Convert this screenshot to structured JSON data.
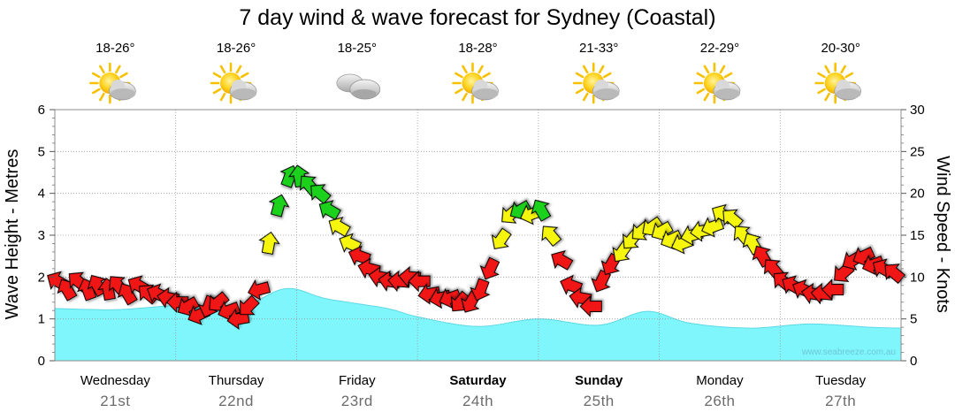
{
  "title": "7 day wind & wave forecast for Sydney (Coastal)",
  "credit": "www.seabreeze.com.au",
  "days": [
    {
      "name": "Wednesday",
      "date": "21st",
      "temp": "18-26°",
      "icon": "sun-cloud-icon",
      "bold": false
    },
    {
      "name": "Thursday",
      "date": "22nd",
      "temp": "18-26°",
      "icon": "sun-cloud-icon",
      "bold": false
    },
    {
      "name": "Friday",
      "date": "23rd",
      "temp": "18-25°",
      "icon": "cloud-icon",
      "bold": false
    },
    {
      "name": "Saturday",
      "date": "24th",
      "temp": "18-28°",
      "icon": "sun-cloud-icon",
      "bold": true
    },
    {
      "name": "Sunday",
      "date": "25th",
      "temp": "21-33°",
      "icon": "sun-cloud-icon",
      "bold": true
    },
    {
      "name": "Monday",
      "date": "26th",
      "temp": "22-29°",
      "icon": "sun-cloud-icon",
      "bold": false
    },
    {
      "name": "Tuesday",
      "date": "27th",
      "temp": "20-30°",
      "icon": "sun-cloud-icon",
      "bold": false
    }
  ],
  "colors": {
    "wave_fill": "#7ff6fb",
    "wave_stroke": "#5fd8e6",
    "wind_green": "#1fd11f",
    "wind_yellow": "#f5f50a",
    "wind_red": "#f01414",
    "grid": "#9a9a9a",
    "date_text": "#6b6b6b"
  },
  "chart_data": {
    "type": "area",
    "title": "7 day wind & wave forecast for Sydney (Coastal)",
    "x_unit": "days from start of Wednesday 21st",
    "xlim": [
      0,
      7
    ],
    "left_axis": {
      "label": "Wave Height - Metres",
      "ylim": [
        0,
        6
      ],
      "ticks": [
        0,
        1,
        2,
        3,
        4,
        5,
        6
      ]
    },
    "right_axis": {
      "label": "Wind Speed - Knots",
      "ylim": [
        0,
        30
      ],
      "ticks": [
        0,
        5,
        10,
        15,
        20,
        25,
        30
      ]
    },
    "series": [
      {
        "name": "Wave Height",
        "axis": "left",
        "style": "area",
        "x": [
          0,
          0.5,
          1.0,
          1.25,
          1.5,
          1.9,
          2.25,
          2.75,
          3.0,
          3.5,
          4.0,
          4.5,
          4.9,
          5.25,
          5.75,
          6.25,
          6.75,
          7.0
        ],
        "y": [
          1.25,
          1.22,
          1.32,
          1.28,
          1.18,
          1.72,
          1.48,
          1.25,
          1.05,
          0.82,
          1.0,
          0.85,
          1.18,
          0.9,
          0.78,
          0.88,
          0.8,
          0.78
        ]
      },
      {
        "name": "Wind Speed",
        "axis": "right",
        "style": "arrows",
        "x": [
          0.0,
          0.08,
          0.17,
          0.25,
          0.33,
          0.42,
          0.5,
          0.58,
          0.67,
          0.75,
          0.83,
          0.92,
          1.0,
          1.08,
          1.17,
          1.25,
          1.33,
          1.42,
          1.5,
          1.58,
          1.67,
          1.75,
          1.83,
          1.92,
          2.0,
          2.08,
          2.17,
          2.25,
          2.33,
          2.42,
          2.5,
          2.58,
          2.67,
          2.75,
          2.83,
          2.92,
          3.0,
          3.08,
          3.17,
          3.25,
          3.33,
          3.42,
          3.5,
          3.58,
          3.67,
          3.75,
          3.83,
          3.92,
          4.0,
          4.08,
          4.17,
          4.25,
          4.33,
          4.42,
          4.5,
          4.58,
          4.67,
          4.75,
          4.83,
          4.92,
          5.0,
          5.08,
          5.17,
          5.25,
          5.33,
          5.42,
          5.5,
          5.58,
          5.67,
          5.75,
          5.83,
          5.92,
          6.0,
          6.08,
          6.17,
          6.25,
          6.33,
          6.42,
          6.5,
          6.58,
          6.67,
          6.75,
          6.83,
          6.92
        ],
        "y": [
          9.5,
          8.5,
          9.5,
          8.5,
          9.0,
          8.5,
          9.0,
          8.0,
          9.0,
          8.0,
          8.0,
          7.5,
          7.0,
          6.5,
          5.5,
          6.5,
          7.0,
          6.0,
          5.0,
          6.5,
          8.5,
          14.0,
          18.5,
          22.0,
          22.0,
          21.0,
          20.0,
          18.0,
          16.0,
          14.0,
          12.5,
          11.0,
          10.0,
          9.5,
          9.5,
          10.0,
          9.5,
          8.0,
          7.5,
          7.5,
          7.0,
          7.0,
          8.5,
          11.0,
          14.5,
          17.5,
          18.0,
          17.5,
          18.0,
          15.0,
          12.0,
          9.0,
          7.5,
          6.5,
          9.5,
          11.5,
          13.0,
          14.5,
          15.5,
          16.0,
          15.5,
          14.5,
          14.0,
          15.0,
          15.5,
          16.0,
          17.5,
          17.0,
          15.0,
          14.0,
          12.5,
          11.0,
          9.5,
          9.0,
          8.5,
          8.0,
          8.0,
          8.5,
          10.5,
          12.0,
          12.5,
          11.5,
          11.0,
          10.5
        ],
        "direction_deg": [
          300,
          330,
          310,
          340,
          330,
          350,
          320,
          330,
          300,
          310,
          295,
          280,
          270,
          240,
          245,
          200,
          230,
          250,
          260,
          225,
          255,
          10,
          15,
          20,
          350,
          320,
          310,
          300,
          300,
          295,
          290,
          285,
          280,
          280,
          275,
          275,
          270,
          260,
          255,
          250,
          220,
          210,
          200,
          205,
          215,
          230,
          240,
          250,
          330,
          320,
          300,
          290,
          280,
          270,
          205,
          210,
          215,
          220,
          230,
          235,
          240,
          245,
          250,
          255,
          260,
          250,
          300,
          310,
          320,
          330,
          330,
          320,
          310,
          300,
          295,
          280,
          275,
          270,
          230,
          240,
          245,
          250,
          300,
          310
        ],
        "color_bands": {
          "red": "below 13 knots",
          "yellow": "13 to 18 knots",
          "green": "18 knots and above"
        }
      }
    ],
    "grid": true,
    "legend": "none"
  }
}
